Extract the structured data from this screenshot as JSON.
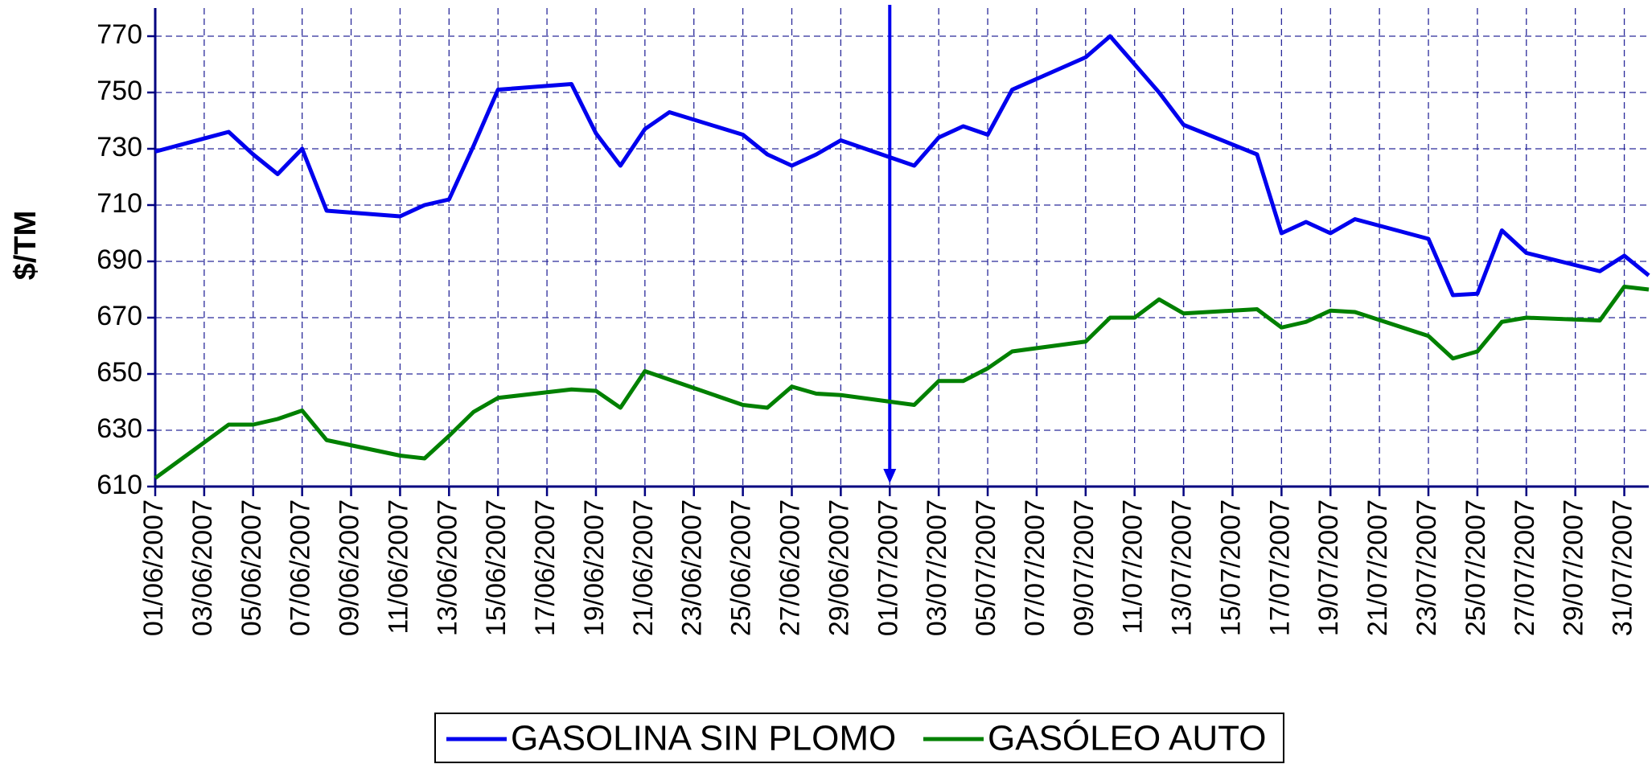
{
  "chart_data": {
    "type": "line",
    "y_label": "$/TM",
    "x": [
      "01/06/2007",
      "04/06/2007",
      "05/06/2007",
      "06/06/2007",
      "07/06/2007",
      "08/06/2007",
      "11/06/2007",
      "12/06/2007",
      "13/06/2007",
      "14/06/2007",
      "15/06/2007",
      "18/06/2007",
      "19/06/2007",
      "20/06/2007",
      "21/06/2007",
      "22/06/2007",
      "25/06/2007",
      "26/06/2007",
      "27/06/2007",
      "28/06/2007",
      "29/06/2007",
      "02/07/2007",
      "03/07/2007",
      "04/07/2007",
      "05/07/2007",
      "06/07/2007",
      "09/07/2007",
      "10/07/2007",
      "11/07/2007",
      "12/07/2007",
      "13/07/2007",
      "16/07/2007",
      "17/07/2007",
      "18/07/2007",
      "19/07/2007",
      "20/07/2007",
      "23/07/2007",
      "24/07/2007",
      "25/07/2007",
      "26/07/2007",
      "27/07/2007",
      "30/07/2007",
      "31/07/2007",
      "01/08/2007"
    ],
    "series": [
      {
        "name": "GASOLINA SIN PLOMO",
        "color": "#0000ee",
        "values": [
          729,
          736,
          728,
          721,
          730,
          708,
          706,
          710,
          712,
          731,
          751,
          753,
          735.5,
          724,
          737,
          743,
          735,
          728,
          724,
          728,
          733,
          724,
          734,
          738,
          735,
          751,
          762.5,
          770,
          760,
          750,
          738.5,
          728,
          700,
          704,
          700,
          705,
          698,
          678,
          678.5,
          701,
          693,
          686.5,
          692,
          685
        ]
      },
      {
        "name": "GASÓLEO AUTO",
        "color": "#008000",
        "values": [
          613,
          632,
          632,
          634,
          637,
          626.5,
          621,
          620,
          628,
          636.5,
          641.5,
          644.5,
          644,
          638,
          651,
          648,
          639,
          638,
          645.5,
          643,
          642.5,
          639,
          647.5,
          647.5,
          652,
          658,
          661.5,
          670,
          670,
          676.5,
          671.5,
          673,
          666.5,
          668.5,
          672.5,
          672,
          663.5,
          655.5,
          658,
          668.5,
          670,
          669,
          681,
          680
        ]
      }
    ],
    "xlim": [
      "01/06/2007",
      "01/08/2007"
    ],
    "xticks": [
      "01/06/2007",
      "03/06/2007",
      "05/06/2007",
      "07/06/2007",
      "09/06/2007",
      "11/06/2007",
      "13/06/2007",
      "15/06/2007",
      "17/06/2007",
      "19/06/2007",
      "21/06/2007",
      "23/06/2007",
      "25/06/2007",
      "27/06/2007",
      "29/06/2007",
      "01/07/2007",
      "03/07/2007",
      "05/07/2007",
      "07/07/2007",
      "09/07/2007",
      "11/07/2007",
      "13/07/2007",
      "15/07/2007",
      "17/07/2007",
      "19/07/2007",
      "21/07/2007",
      "23/07/2007",
      "25/07/2007",
      "27/07/2007",
      "29/07/2007",
      "31/07/2007"
    ],
    "ylim": [
      610,
      780
    ],
    "yticks": [
      610,
      630,
      650,
      670,
      690,
      710,
      730,
      750,
      770
    ],
    "grid": true,
    "legend": "bottom"
  }
}
